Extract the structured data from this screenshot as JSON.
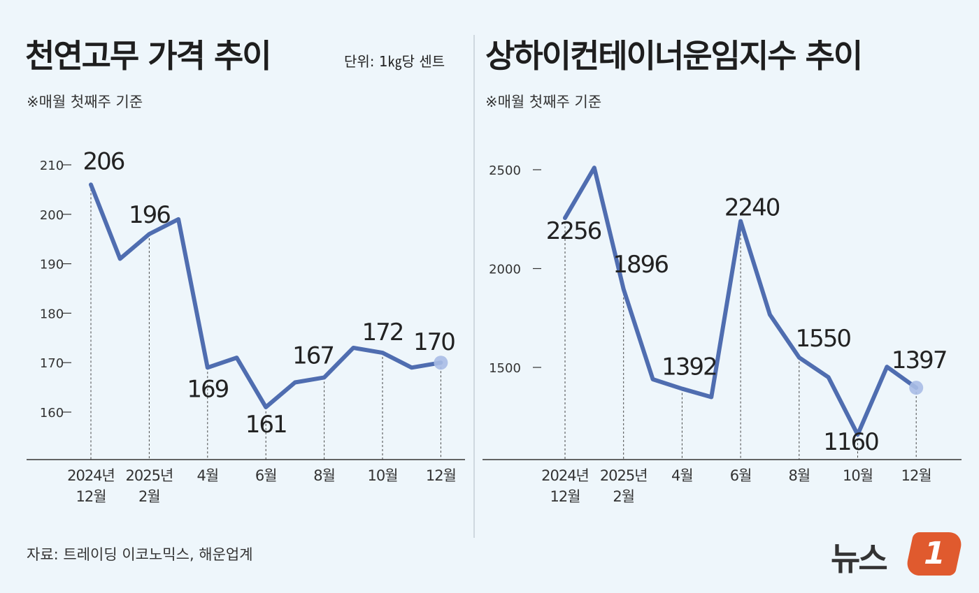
{
  "source": "자료: 트레이딩 이코노믹스, 해운업계",
  "logo": {
    "text": "뉴스",
    "mark": "1",
    "color": "#e05a2e"
  },
  "colors": {
    "line": "#4f6db0",
    "background": "#eef6fb",
    "endpoint": "#a9bde6"
  },
  "chart_data": [
    {
      "type": "line",
      "title": "천연고무 가격 추이",
      "unit": "단위: 1㎏당 센트",
      "note": "※매월 첫째주 기준",
      "ylim": [
        155,
        212
      ],
      "yticks": [
        160,
        170,
        180,
        190,
        200,
        210
      ],
      "x": [
        "2024-12",
        "2025-01",
        "2025-02",
        "2025-03",
        "2025-04",
        "2025-05",
        "2025-06",
        "2025-07",
        "2025-08",
        "2025-09",
        "2025-10",
        "2025-11",
        "2025-12"
      ],
      "xtick_labels": [
        {
          "index": 0,
          "lines": [
            "2024년",
            "12월"
          ]
        },
        {
          "index": 2,
          "lines": [
            "2025년",
            "2월"
          ]
        },
        {
          "index": 4,
          "lines": [
            "4월"
          ]
        },
        {
          "index": 6,
          "lines": [
            "6월"
          ]
        },
        {
          "index": 8,
          "lines": [
            "8월"
          ]
        },
        {
          "index": 10,
          "lines": [
            "10월"
          ]
        },
        {
          "index": 12,
          "lines": [
            "12월"
          ]
        }
      ],
      "values": [
        206,
        191,
        196,
        199,
        169,
        171,
        161,
        166,
        167,
        173,
        172,
        169,
        170
      ],
      "data_labels": [
        {
          "index": 0,
          "text": "206"
        },
        {
          "index": 2,
          "text": "196"
        },
        {
          "index": 4,
          "text": "169"
        },
        {
          "index": 6,
          "text": "161"
        },
        {
          "index": 8,
          "text": "167"
        },
        {
          "index": 10,
          "text": "172"
        },
        {
          "index": 12,
          "text": "170"
        }
      ],
      "grid": false
    },
    {
      "type": "line",
      "title": "상하이컨테이너운임지수 추이",
      "note": "※매월 첫째주 기준",
      "ylim": [
        1000,
        2600
      ],
      "yticks": [
        1500,
        2000,
        2500
      ],
      "x": [
        "2024-12",
        "2025-01",
        "2025-02",
        "2025-03",
        "2025-04",
        "2025-05",
        "2025-06",
        "2025-07",
        "2025-08",
        "2025-09",
        "2025-10",
        "2025-11",
        "2025-12"
      ],
      "xtick_labels": [
        {
          "index": 0,
          "lines": [
            "2024년",
            "12월"
          ]
        },
        {
          "index": 2,
          "lines": [
            "2025년",
            "2월"
          ]
        },
        {
          "index": 4,
          "lines": [
            "4월"
          ]
        },
        {
          "index": 6,
          "lines": [
            "6월"
          ]
        },
        {
          "index": 8,
          "lines": [
            "8월"
          ]
        },
        {
          "index": 10,
          "lines": [
            "10월"
          ]
        },
        {
          "index": 12,
          "lines": [
            "12월"
          ]
        }
      ],
      "values": [
        2256,
        2510,
        1896,
        1440,
        1392,
        1350,
        2240,
        1767,
        1550,
        1450,
        1160,
        1503,
        1397
      ],
      "data_labels": [
        {
          "index": 0,
          "text": "2256"
        },
        {
          "index": 2,
          "text": "1896"
        },
        {
          "index": 4,
          "text": "1392"
        },
        {
          "index": 6,
          "text": "2240"
        },
        {
          "index": 8,
          "text": "1550"
        },
        {
          "index": 10,
          "text": "1160"
        },
        {
          "index": 12,
          "text": "1397"
        }
      ],
      "grid": false
    }
  ]
}
